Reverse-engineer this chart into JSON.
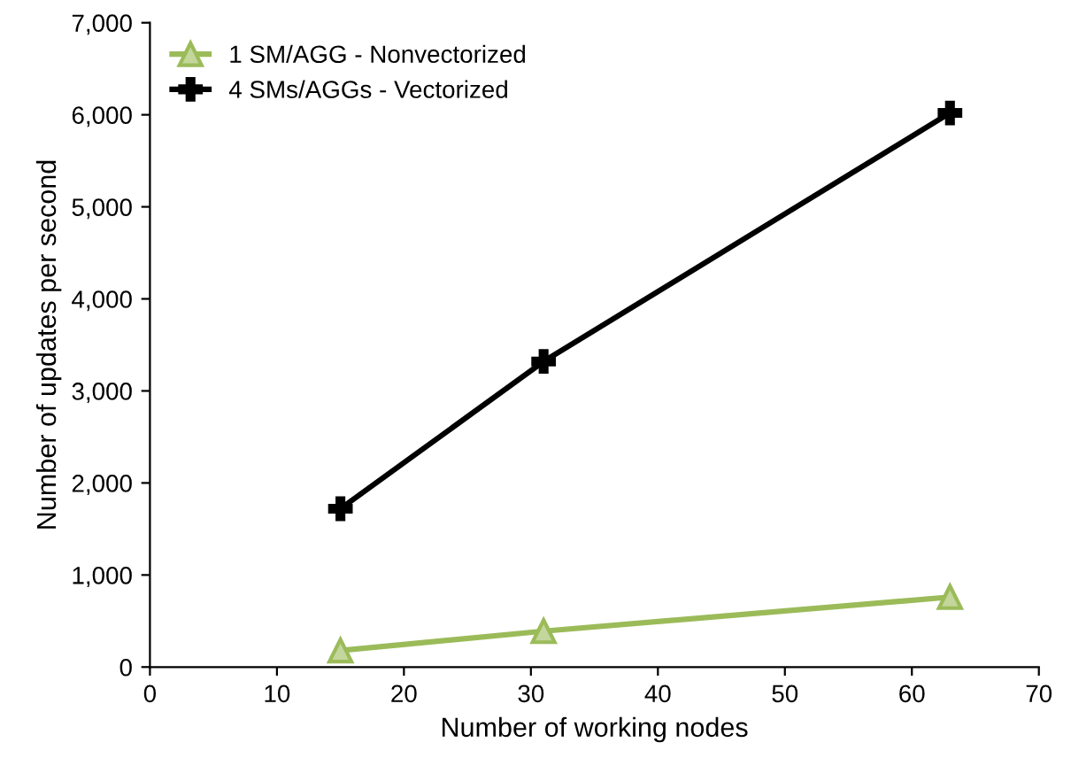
{
  "chart_data": {
    "type": "line",
    "xlabel": "Number of working nodes",
    "ylabel": "Number of updates per second",
    "xlim": [
      0,
      70
    ],
    "xticks": [
      0,
      10,
      20,
      30,
      40,
      50,
      60,
      70
    ],
    "ylim": [
      0,
      7000
    ],
    "yticks": [
      {
        "value": 0,
        "label": "0"
      },
      {
        "value": 1000,
        "label": "1,000"
      },
      {
        "value": 2000,
        "label": "2,000"
      },
      {
        "value": 3000,
        "label": "3,000"
      },
      {
        "value": 4000,
        "label": "4,000"
      },
      {
        "value": 5000,
        "label": "5,000"
      },
      {
        "value": 6000,
        "label": "6,000"
      },
      {
        "value": 7000,
        "label": "7,000"
      }
    ],
    "x": [
      15,
      31,
      63
    ],
    "series": [
      {
        "name": "1 SM/AGG - Nonvectorized",
        "color": "#9bbb59",
        "marker": "triangle",
        "values": [
          180,
          390,
          760
        ]
      },
      {
        "name": "4 SMs/AGGs - Vectorized",
        "color": "#000000",
        "marker": "cross",
        "values": [
          1720,
          3320,
          6020
        ]
      }
    ],
    "legend": "top left",
    "grid": false,
    "line_style": "solid"
  }
}
